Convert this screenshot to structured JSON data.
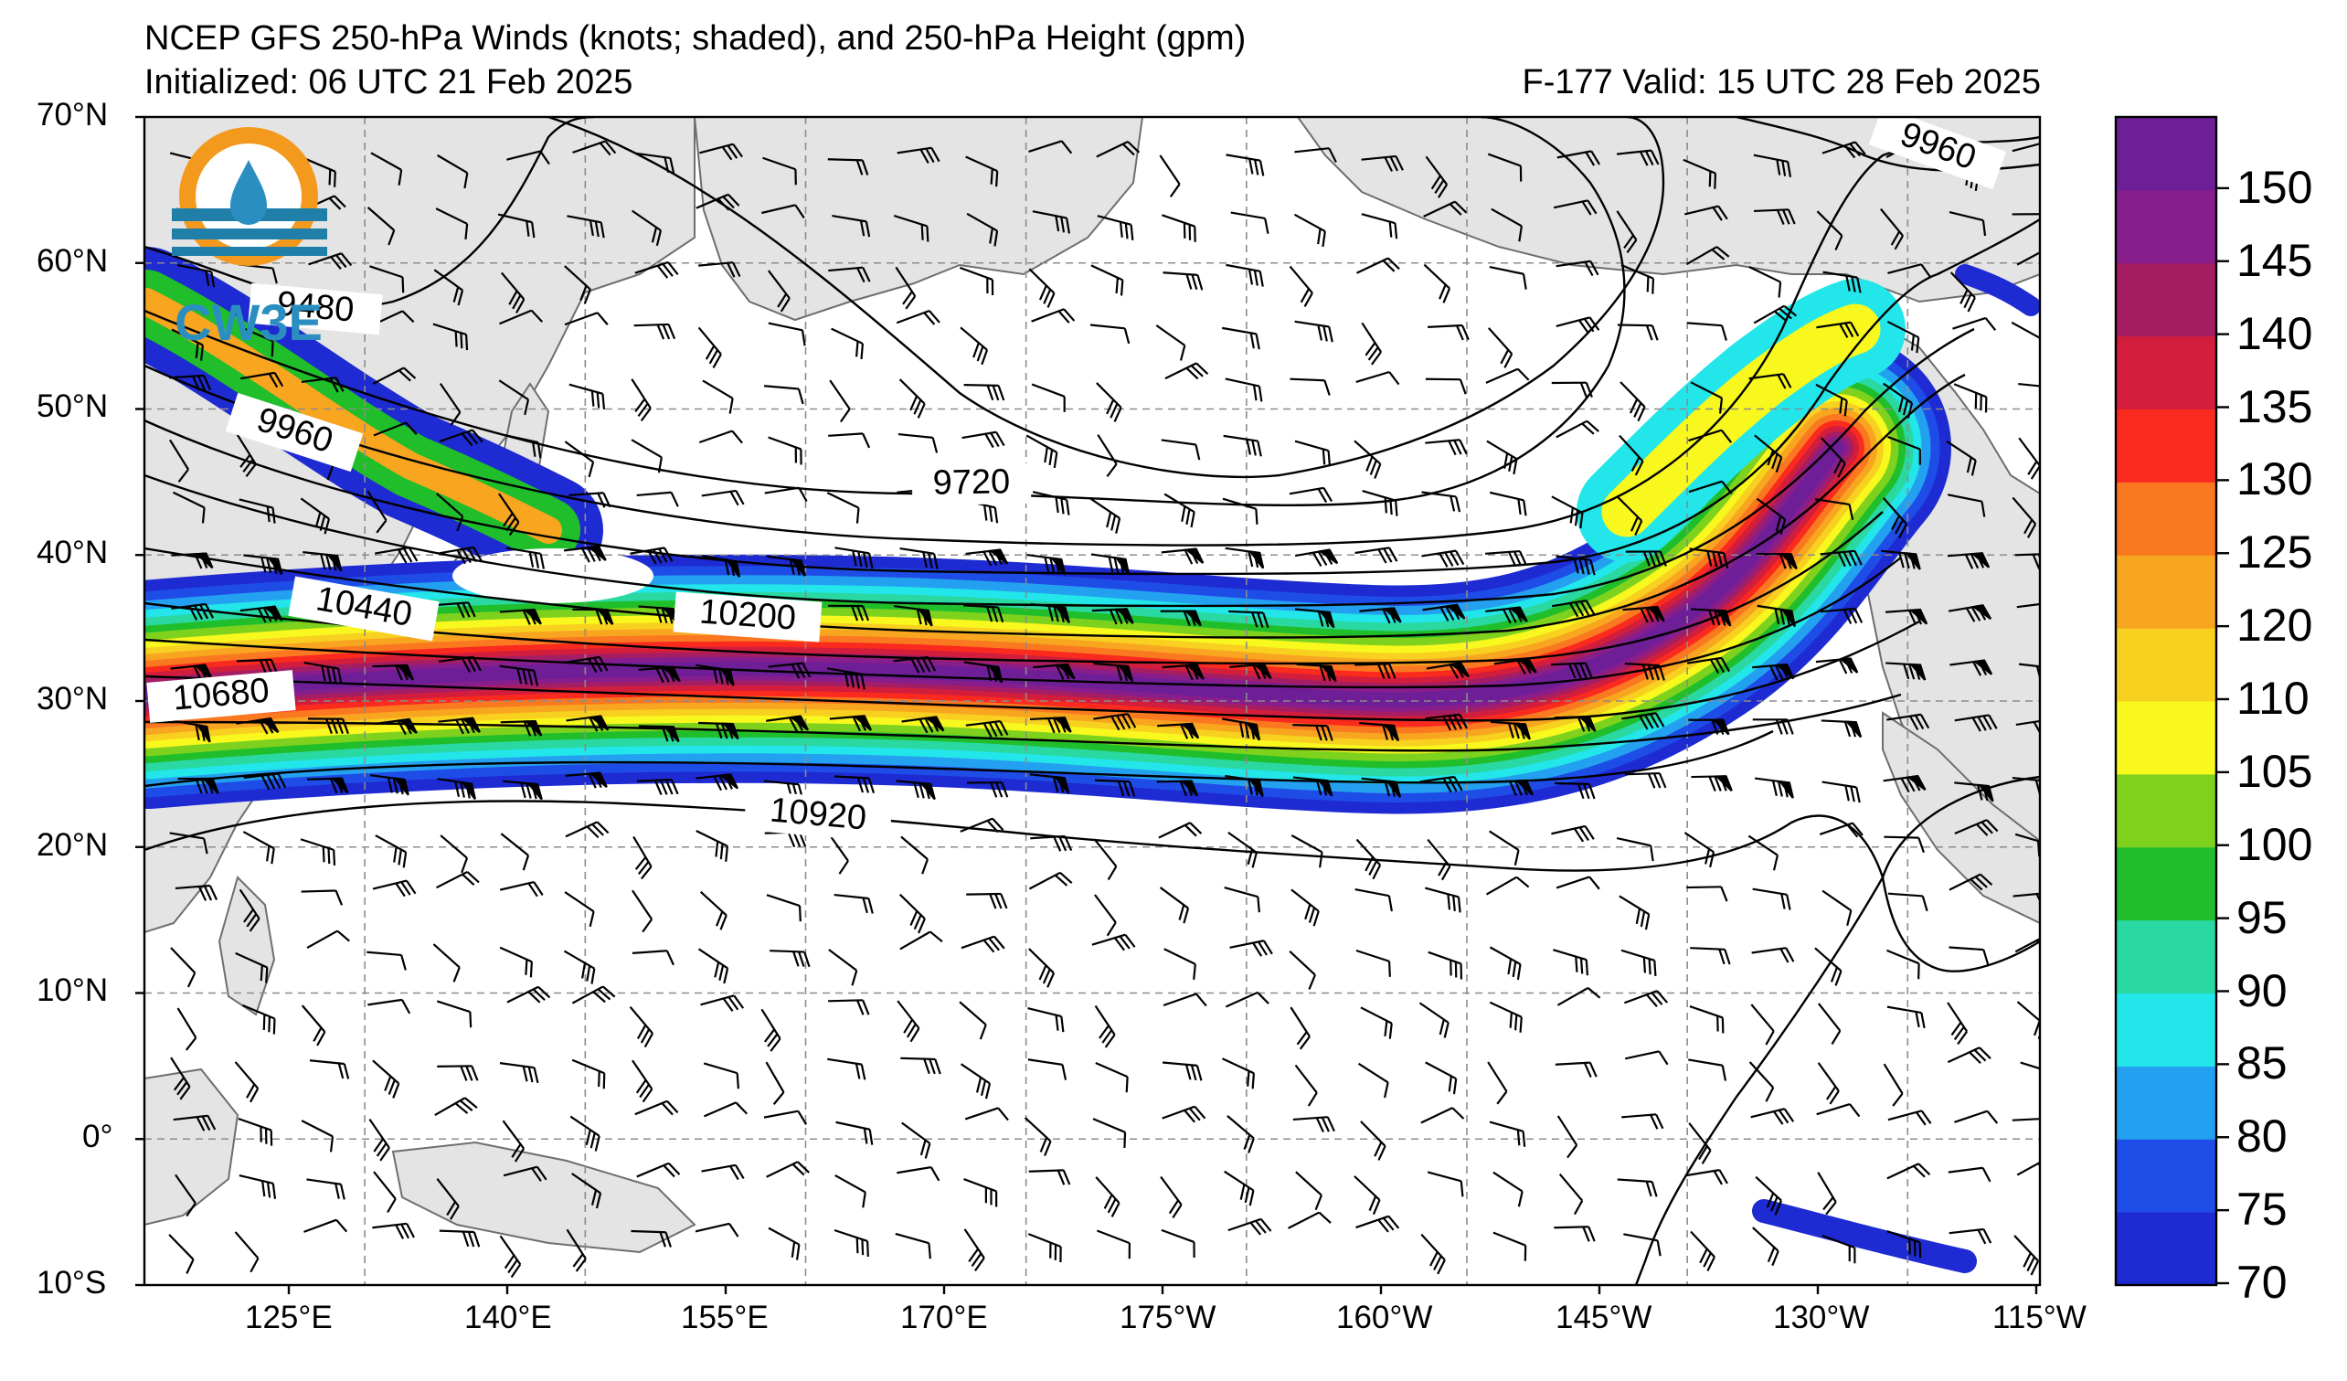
{
  "header": {
    "title": "NCEP GFS 250-hPa Winds (knots; shaded), and 250-hPa Height (gpm)",
    "init": "Initialized: 06 UTC 21 Feb 2025",
    "valid": "F-177  Valid: 15 UTC 28 Feb 2025"
  },
  "logo": {
    "text": "CW3E"
  },
  "axes": {
    "lat_labels": [
      "70°N",
      "60°N",
      "50°N",
      "40°N",
      "30°N",
      "20°N",
      "10°N",
      "0°",
      "10°S"
    ],
    "lon_labels": [
      "125°E",
      "140°E",
      "155°E",
      "170°E",
      "175°W",
      "160°W",
      "145°W",
      "130°W",
      "115°W"
    ]
  },
  "contour_labels": [
    "9480",
    "9960",
    "9720",
    "9960",
    "10440",
    "10200",
    "10680",
    "10920"
  ],
  "colorbar": {
    "labels": [
      "150",
      "145",
      "140",
      "135",
      "130",
      "125",
      "120",
      "110",
      "105",
      "100",
      "95",
      "90",
      "85",
      "80",
      "75",
      "70"
    ],
    "colors": [
      "#1e2ad2",
      "#1e4ce6",
      "#24a0f0",
      "#22e6ea",
      "#2ad8a2",
      "#20be2a",
      "#7ed21e",
      "#f8f81e",
      "#f8d020",
      "#f8a520",
      "#fa7820",
      "#fa2a1e",
      "#d21e3c",
      "#a51e64",
      "#871e8c",
      "#6e1e96"
    ]
  },
  "colors": {
    "land": "#e4e4e4",
    "coast": "#6e6e6e",
    "grid": "#8c8c8c",
    "contour": "#000000"
  }
}
